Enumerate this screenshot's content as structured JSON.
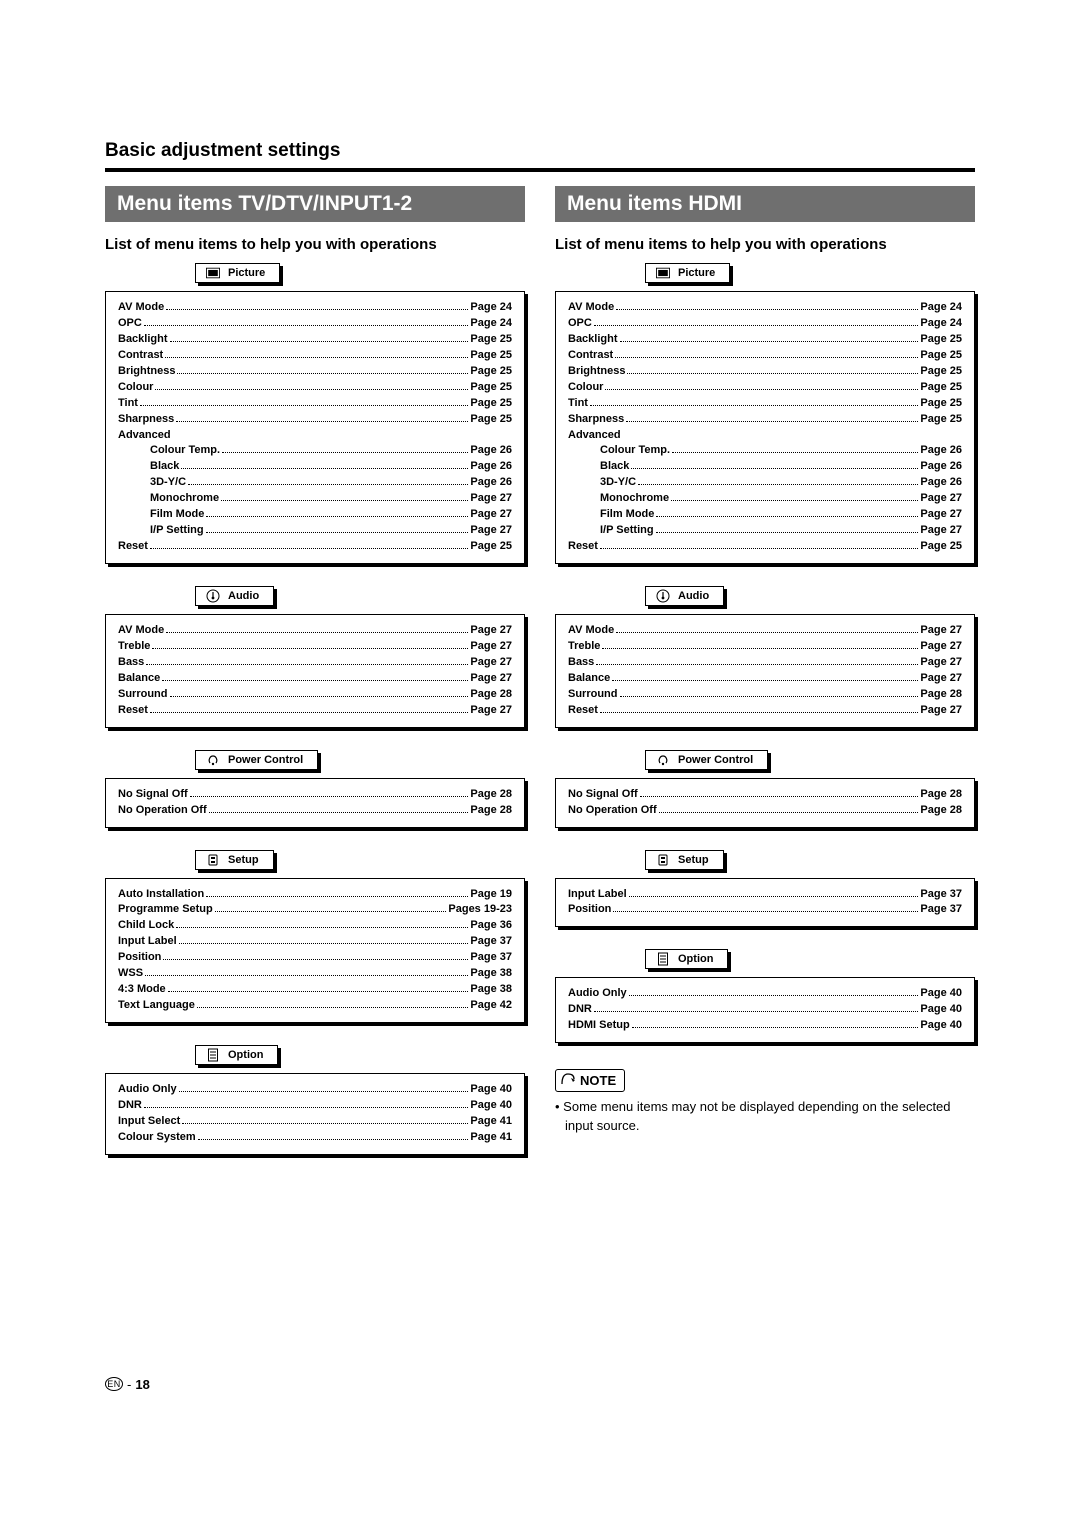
{
  "section_title": "Basic adjustment settings",
  "page_number": "18",
  "en_label": "EN",
  "colors": {
    "banner_bg": "#6f6f6f",
    "banner_fg": "#ffffff",
    "text": "#000000",
    "bg": "#ffffff"
  },
  "note": {
    "label": "NOTE",
    "bullet": "•",
    "text": "Some menu items may not be displayed depending on the selected input source."
  },
  "columns": [
    {
      "banner": "Menu items TV/DTV/INPUT1-2",
      "subhead": "List of menu items to help you with operations",
      "groups": [
        {
          "icon": "picture-icon",
          "title": "Picture",
          "items": [
            {
              "label": "AV Mode",
              "page": "Page 24"
            },
            {
              "label": "OPC",
              "page": "Page 24"
            },
            {
              "label": "Backlight",
              "page": "Page 25"
            },
            {
              "label": "Contrast",
              "page": "Page 25"
            },
            {
              "label": "Brightness",
              "page": "Page 25"
            },
            {
              "label": "Colour",
              "page": "Page 25"
            },
            {
              "label": "Tint",
              "page": "Page 25"
            },
            {
              "label": "Sharpness",
              "page": "Page 25"
            },
            {
              "label": "Advanced",
              "no_page": true
            },
            {
              "label": "Colour Temp.",
              "page": "Page 26",
              "indent": true
            },
            {
              "label": "Black",
              "page": "Page 26",
              "indent": true
            },
            {
              "label": "3D-Y/C",
              "page": "Page 26",
              "indent": true
            },
            {
              "label": "Monochrome",
              "page": "Page 27",
              "indent": true
            },
            {
              "label": "Film Mode",
              "page": "Page 27",
              "indent": true
            },
            {
              "label": "I/P Setting",
              "page": "Page 27",
              "indent": true
            },
            {
              "label": "Reset",
              "page": "Page 25"
            }
          ]
        },
        {
          "icon": "audio-icon",
          "title": "Audio",
          "items": [
            {
              "label": "AV Mode",
              "page": "Page 27"
            },
            {
              "label": "Treble",
              "page": "Page 27"
            },
            {
              "label": "Bass",
              "page": "Page 27"
            },
            {
              "label": "Balance",
              "page": "Page 27"
            },
            {
              "label": "Surround",
              "page": "Page 28"
            },
            {
              "label": "Reset",
              "page": "Page 27"
            }
          ]
        },
        {
          "icon": "power-icon",
          "title": "Power Control",
          "items": [
            {
              "label": "No Signal Off",
              "page": "Page 28"
            },
            {
              "label": "No Operation Off",
              "page": "Page 28"
            }
          ]
        },
        {
          "icon": "setup-icon",
          "title": "Setup",
          "items": [
            {
              "label": "Auto Installation",
              "page": "Page 19"
            },
            {
              "label": "Programme Setup",
              "page": "Pages 19-23"
            },
            {
              "label": "Child Lock",
              "page": "Page 36"
            },
            {
              "label": "Input Label",
              "page": "Page 37"
            },
            {
              "label": "Position",
              "page": "Page 37"
            },
            {
              "label": "WSS",
              "page": "Page 38"
            },
            {
              "label": "4:3 Mode",
              "page": "Page 38"
            },
            {
              "label": "Text Language",
              "page": "Page 42"
            }
          ]
        },
        {
          "icon": "option-icon",
          "title": "Option",
          "items": [
            {
              "label": "Audio Only",
              "page": "Page 40"
            },
            {
              "label": "DNR",
              "page": "Page 40"
            },
            {
              "label": "Input Select",
              "page": "Page 41"
            },
            {
              "label": "Colour System",
              "page": "Page 41"
            }
          ]
        }
      ]
    },
    {
      "banner": "Menu items HDMI",
      "subhead": "List of menu items to help you with operations",
      "show_note": true,
      "groups": [
        {
          "icon": "picture-icon",
          "title": "Picture",
          "items": [
            {
              "label": "AV Mode",
              "page": "Page 24"
            },
            {
              "label": "OPC",
              "page": "Page 24"
            },
            {
              "label": "Backlight",
              "page": "Page 25"
            },
            {
              "label": "Contrast",
              "page": "Page 25"
            },
            {
              "label": "Brightness",
              "page": "Page 25"
            },
            {
              "label": "Colour",
              "page": "Page 25"
            },
            {
              "label": "Tint",
              "page": "Page 25"
            },
            {
              "label": "Sharpness",
              "page": "Page 25"
            },
            {
              "label": "Advanced",
              "no_page": true
            },
            {
              "label": "Colour Temp.",
              "page": "Page 26",
              "indent": true
            },
            {
              "label": "Black",
              "page": "Page 26",
              "indent": true
            },
            {
              "label": "3D-Y/C",
              "page": "Page 26",
              "indent": true
            },
            {
              "label": "Monochrome",
              "page": "Page 27",
              "indent": true
            },
            {
              "label": "Film Mode",
              "page": "Page 27",
              "indent": true
            },
            {
              "label": "I/P Setting",
              "page": "Page 27",
              "indent": true
            },
            {
              "label": "Reset",
              "page": "Page 25"
            }
          ]
        },
        {
          "icon": "audio-icon",
          "title": "Audio",
          "items": [
            {
              "label": "AV Mode",
              "page": "Page 27"
            },
            {
              "label": "Treble",
              "page": "Page 27"
            },
            {
              "label": "Bass",
              "page": "Page 27"
            },
            {
              "label": "Balance",
              "page": "Page 27"
            },
            {
              "label": "Surround",
              "page": "Page 28"
            },
            {
              "label": "Reset",
              "page": "Page 27"
            }
          ]
        },
        {
          "icon": "power-icon",
          "title": "Power Control",
          "items": [
            {
              "label": "No Signal Off",
              "page": "Page 28"
            },
            {
              "label": "No Operation Off",
              "page": "Page 28"
            }
          ]
        },
        {
          "icon": "setup-icon",
          "title": "Setup",
          "items": [
            {
              "label": "Input Label",
              "page": "Page 37"
            },
            {
              "label": "Position",
              "page": "Page 37"
            }
          ]
        },
        {
          "icon": "option-icon",
          "title": "Option",
          "items": [
            {
              "label": "Audio Only",
              "page": "Page 40"
            },
            {
              "label": "DNR",
              "page": "Page 40"
            },
            {
              "label": "HDMI Setup",
              "page": "Page 40"
            }
          ]
        }
      ]
    }
  ]
}
